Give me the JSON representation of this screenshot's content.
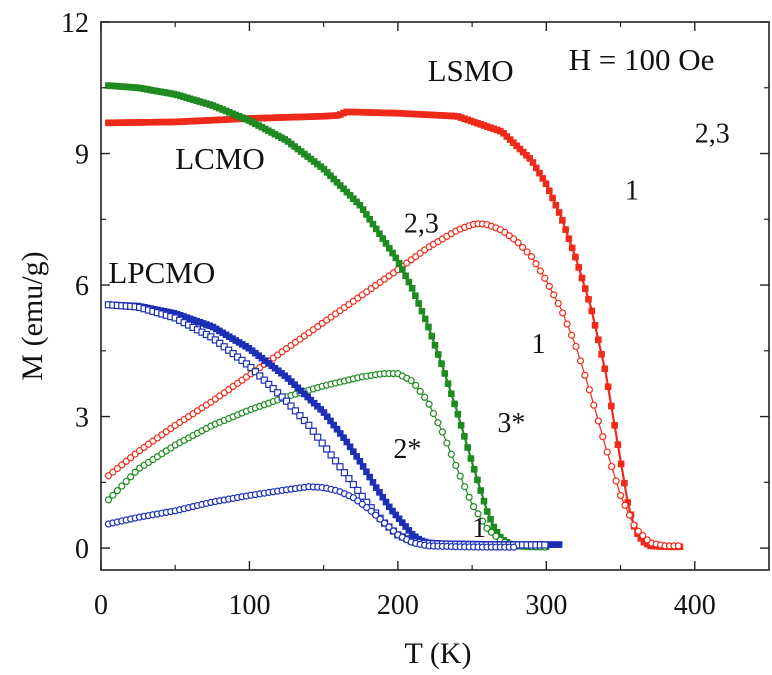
{
  "chart_data": {
    "type": "line",
    "xlabel": "T (K)",
    "ylabel": "M (emu/g)",
    "xlim": [
      0,
      450
    ],
    "ylim": [
      -0.5,
      12
    ],
    "xticks": [
      0,
      100,
      200,
      300,
      400
    ],
    "yticks": [
      0,
      3,
      6,
      9,
      12
    ],
    "grid": false,
    "annotations": [
      {
        "text": "H = 100 Oe",
        "x": 315,
        "y": 10.9
      },
      {
        "text": "LSMO",
        "x": 220,
        "y": 10.65
      },
      {
        "text": "LCMO",
        "x": 50,
        "y": 8.65
      },
      {
        "text": "LPCMO",
        "x": 5,
        "y": 6.05
      },
      {
        "text": "2,3",
        "x": 400,
        "y": 9.25
      },
      {
        "text": "1",
        "x": 353,
        "y": 7.95
      },
      {
        "text": "2,3",
        "x": 204,
        "y": 7.2
      },
      {
        "text": "1",
        "x": 290,
        "y": 4.45
      },
      {
        "text": "3*",
        "x": 267,
        "y": 2.65
      },
      {
        "text": "2*",
        "x": 197,
        "y": 2.05
      },
      {
        "text": "1",
        "x": 250,
        "y": 0.25
      }
    ],
    "series": [
      {
        "color": "#ee2a1a",
        "marker": "filled-square",
        "x": [
          5,
          50,
          100,
          150,
          160,
          165,
          200,
          240,
          270,
          290,
          300,
          310,
          320,
          330,
          340,
          345,
          350,
          355,
          360,
          365,
          370,
          380,
          390
        ],
        "y": [
          9.7,
          9.72,
          9.8,
          9.85,
          9.87,
          9.95,
          9.92,
          9.85,
          9.5,
          8.85,
          8.3,
          7.55,
          6.6,
          5.5,
          4.0,
          3.0,
          2.0,
          1.0,
          0.4,
          0.15,
          0.05,
          0.03,
          0.03
        ]
      },
      {
        "color": "#ee2a1a",
        "marker": "open-circle",
        "x": [
          5,
          25,
          50,
          75,
          100,
          125,
          150,
          175,
          200,
          220,
          240,
          250,
          255,
          260,
          270,
          280,
          290,
          300,
          310,
          320,
          330,
          340,
          350,
          360,
          370,
          380,
          390
        ],
        "y": [
          1.65,
          2.2,
          2.8,
          3.35,
          3.95,
          4.55,
          5.15,
          5.75,
          6.35,
          6.85,
          7.25,
          7.38,
          7.4,
          7.38,
          7.25,
          7.0,
          6.65,
          6.1,
          5.45,
          4.6,
          3.5,
          2.3,
          1.2,
          0.45,
          0.12,
          0.05,
          0.05
        ]
      },
      {
        "color": "#1f8a20",
        "marker": "filled-square",
        "x": [
          5,
          25,
          50,
          75,
          100,
          125,
          150,
          175,
          200,
          210,
          220,
          230,
          240,
          250,
          260,
          265,
          270,
          275,
          280,
          290,
          300
        ],
        "y": [
          10.55,
          10.5,
          10.35,
          10.1,
          9.75,
          9.3,
          8.65,
          7.8,
          6.55,
          5.9,
          5.1,
          4.15,
          3.1,
          1.95,
          0.85,
          0.45,
          0.2,
          0.1,
          0.05,
          0.03,
          0.03
        ]
      },
      {
        "color": "#1f8a20",
        "marker": "open-circle",
        "x": [
          5,
          25,
          50,
          75,
          100,
          125,
          150,
          175,
          190,
          200,
          210,
          220,
          230,
          240,
          250,
          260,
          270,
          280,
          290,
          300
        ],
        "y": [
          1.1,
          1.8,
          2.35,
          2.8,
          3.15,
          3.45,
          3.7,
          3.9,
          3.98,
          3.98,
          3.8,
          3.35,
          2.65,
          1.8,
          1.0,
          0.45,
          0.15,
          0.05,
          0.03,
          0.02
        ]
      },
      {
        "color": "#1c2fb5",
        "marker": "filled-square",
        "x": [
          5,
          25,
          50,
          75,
          100,
          125,
          150,
          165,
          175,
          185,
          195,
          205,
          210,
          215,
          220,
          230,
          250,
          270,
          290,
          310
        ],
        "y": [
          5.55,
          5.52,
          5.35,
          5.05,
          4.55,
          3.9,
          3.1,
          2.45,
          1.95,
          1.4,
          0.9,
          0.5,
          0.3,
          0.18,
          0.12,
          0.1,
          0.09,
          0.08,
          0.08,
          0.08
        ]
      },
      {
        "color": "#1c2fb5",
        "marker": "open-square",
        "x": [
          5,
          25,
          50,
          75,
          100,
          125,
          140,
          150,
          160,
          170,
          180,
          190,
          200,
          210,
          220,
          240,
          260,
          280,
          300
        ],
        "y": [
          5.55,
          5.5,
          5.25,
          4.8,
          4.15,
          3.35,
          2.8,
          2.35,
          1.9,
          1.45,
          1.0,
          0.6,
          0.3,
          0.15,
          0.1,
          0.08,
          0.07,
          0.07,
          0.07
        ]
      },
      {
        "color": "#1c2fb5",
        "marker": "open-circle",
        "x": [
          5,
          25,
          50,
          75,
          100,
          125,
          140,
          150,
          160,
          170,
          180,
          190,
          200,
          210,
          220,
          240,
          260,
          280
        ],
        "y": [
          0.55,
          0.7,
          0.85,
          1.05,
          1.2,
          1.33,
          1.4,
          1.38,
          1.3,
          1.15,
          0.9,
          0.6,
          0.3,
          0.12,
          0.05,
          0.03,
          0.02,
          0.02
        ]
      }
    ]
  }
}
